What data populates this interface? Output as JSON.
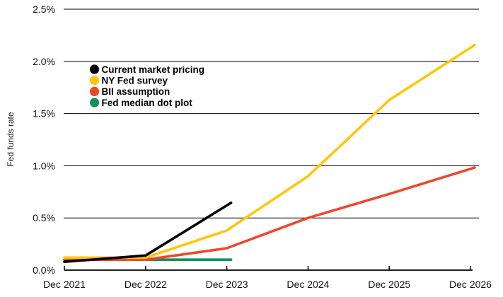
{
  "chart_data": {
    "type": "line",
    "title": "",
    "ylabel": "Fed funds rate",
    "xlabel": "",
    "categories": [
      "Dec 2021",
      "Dec 2022",
      "Dec 2023",
      "Dec 2024",
      "Dec 2025",
      "Dec 2026"
    ],
    "y_ticks": [
      "0.0%",
      "0.5%",
      "1.0%",
      "1.5%",
      "2.0%",
      "2.5%"
    ],
    "y_tick_values": [
      0,
      0.5,
      1.0,
      1.5,
      2.0,
      2.5
    ],
    "ylim": [
      0,
      2.5
    ],
    "grid": "horizontal",
    "legend_position": "upper-left-inside",
    "axis_color": "#000000",
    "background_color": "#ffffff",
    "series": [
      {
        "name": "Current market pricing",
        "color": "#000000",
        "values": [
          0.08,
          0.14,
          0.62,
          null,
          null,
          null
        ]
      },
      {
        "name": "NY Fed survey",
        "color": "#FFC60A",
        "values": [
          0.12,
          0.12,
          0.38,
          0.9,
          1.63,
          2.13
        ]
      },
      {
        "name": "BII assumption",
        "color": "#F0462A",
        "values": [
          0.1,
          0.1,
          0.21,
          0.5,
          0.73,
          0.97
        ]
      },
      {
        "name": "Fed median dot plot",
        "color": "#12935B",
        "values": [
          0.1,
          0.1,
          0.1,
          null,
          null,
          null
        ]
      }
    ]
  }
}
